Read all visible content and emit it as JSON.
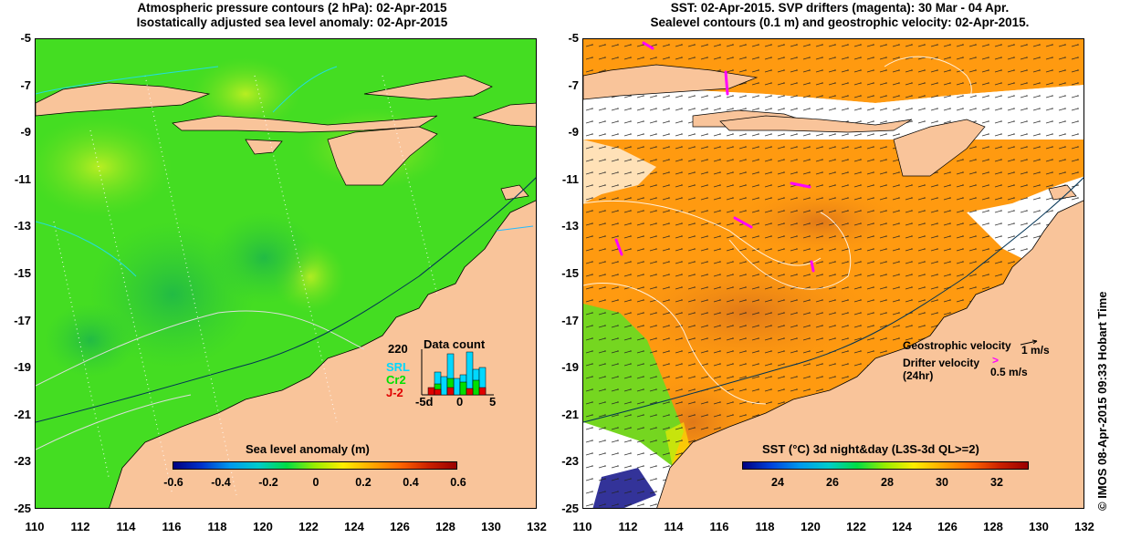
{
  "left_panel": {
    "title_line1": "Atmospheric pressure contours (2 hPa): 02-Apr-2015",
    "title_line2": "Isostatically adjusted sea level anomaly: 02-Apr-2015",
    "colorbar": {
      "title": "Sea level anomaly (m)",
      "labels": [
        "-0.6",
        "-0.4",
        "-0.2",
        "0",
        "0.2",
        "0.4",
        "0.6"
      ],
      "min": -0.6,
      "max": 0.6
    },
    "inset": {
      "title": "Data count",
      "max_label": "220",
      "series": [
        {
          "name": "SRL",
          "color": "#00d8ff"
        },
        {
          "name": "Cr2",
          "color": "#00e000"
        },
        {
          "name": "J-2",
          "color": "#e00000"
        }
      ],
      "x_labels": [
        "-5d",
        "0",
        "5"
      ]
    }
  },
  "right_panel": {
    "title_line1": "SST: 02-Apr-2015. SVP drifters (magenta): 30 Mar - 04 Apr.",
    "title_line2": "Sealevel contours (0.1 m) and geostrophic velocity: 02-Apr-2015.",
    "legend": {
      "geo_label": "Geostrophic velocity",
      "geo_scale": "1 m/s",
      "drifter_label": "Drifter velocity",
      "drifter_sub": "(24hr)",
      "drifter_scale": "0.5 m/s"
    },
    "colorbar": {
      "title": "SST (°C) 3d night&day (L3S-3d QL>=2)",
      "labels": [
        "24",
        "26",
        "28",
        "30",
        "32"
      ],
      "min": 22.6,
      "max": 32.6
    }
  },
  "axes": {
    "y_labels": [
      "-5",
      "-7",
      "-9",
      "-11",
      "-13",
      "-15",
      "-17",
      "-19",
      "-21",
      "-23",
      "-25"
    ],
    "x_labels": [
      "110",
      "112",
      "114",
      "116",
      "118",
      "120",
      "122",
      "124",
      "126",
      "128",
      "130",
      "132"
    ]
  },
  "credit": "© IMOS 08-Apr-2015 09:33 Hobart Time",
  "colors": {
    "land": "#f9c49a",
    "sea_green": "#44dd22",
    "sst_orange": "#ff9a10",
    "drifter": "#ff00ff"
  }
}
